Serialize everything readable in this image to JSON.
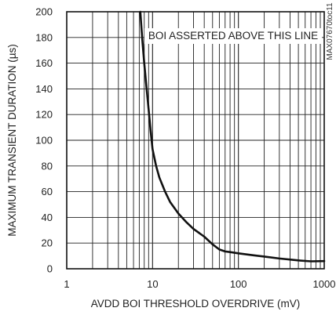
{
  "chart_data": {
    "type": "line",
    "title": "",
    "xlabel": "AVDD BOI THRESHOLD OVERDRIVE (mV)",
    "ylabel": "MAXIMUM TRANSIENT DURATION (µs)",
    "xscale": "log",
    "xlim": [
      1,
      1000
    ],
    "ylim": [
      0,
      200
    ],
    "x_ticks": [
      1,
      10,
      100,
      1000
    ],
    "x_tick_labels": [
      "1",
      "10",
      "100",
      "1000"
    ],
    "y_ticks": [
      0,
      20,
      40,
      60,
      80,
      100,
      120,
      140,
      160,
      180,
      200
    ],
    "y_tick_labels": [
      "0",
      "20",
      "40",
      "60",
      "80",
      "100",
      "120",
      "140",
      "160",
      "180",
      "200"
    ],
    "grid": true,
    "annotation": "BOI ASSERTED ABOVE THIS LINE",
    "figure_code": "MAX07670toc11",
    "series": [
      {
        "x": [
          7.2,
          7.6,
          8.0,
          8.5,
          9.0,
          9.5,
          10,
          11,
          12,
          14,
          16,
          20,
          25,
          30,
          40,
          50,
          60,
          70,
          80,
          100,
          150,
          200,
          300,
          500,
          700,
          1000
        ],
        "y": [
          200,
          178,
          160,
          141,
          124,
          107,
          93,
          80,
          71,
          60,
          52,
          43,
          36,
          31,
          25,
          19,
          15,
          13.5,
          13,
          12,
          10.5,
          9.5,
          8,
          6.5,
          5.8,
          6
        ]
      }
    ],
    "colors": {
      "line": "#111111",
      "grid": "#222222"
    }
  }
}
